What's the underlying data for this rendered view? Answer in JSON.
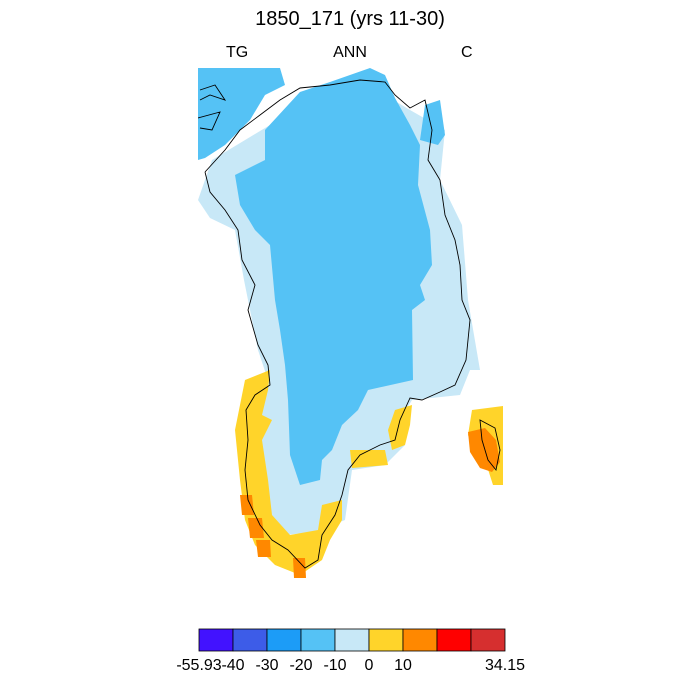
{
  "title": "1850_171 (yrs 11-30)",
  "subtitles": {
    "left": "TG",
    "center": "ANN",
    "right": "C"
  },
  "colors": {
    "bin_m50_m40": "#4212ff",
    "bin_m40_m30": "#3d5ce8",
    "bin_m30_m20": "#1c9cf7",
    "bin_m20_m10": "#55c2f5",
    "bin_m10_0": "#c8e8f7",
    "bin_0_10": "#ffd42a",
    "bin_10_20": "#ff8800",
    "bin_20_30": "#ff0000",
    "bin_30_40": "#d62f2f",
    "coastline": "#000000"
  },
  "colorbar": {
    "colors": [
      "#4212ff",
      "#3d5ce8",
      "#1c9cf7",
      "#55c2f5",
      "#c8e8f7",
      "#ffd42a",
      "#ff8800",
      "#ff0000",
      "#d62f2f"
    ],
    "labels": [
      "-55.93",
      "-40",
      "-30",
      "-20",
      "-10",
      "0",
      "10",
      "34.15"
    ]
  }
}
